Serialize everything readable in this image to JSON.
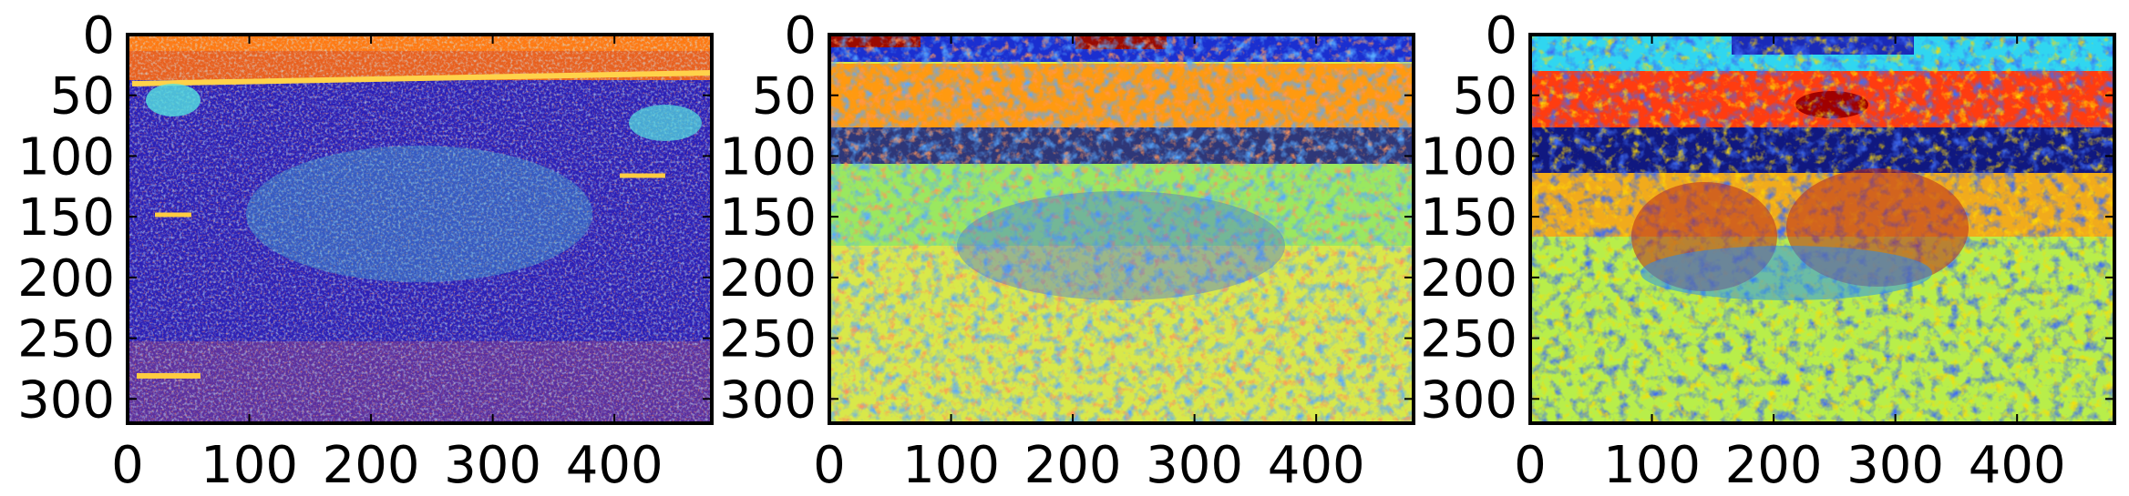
{
  "chart_data": [
    {
      "type": "heatmap",
      "colormap": "jet",
      "image_size": [
        480,
        320
      ],
      "xlim": [
        0,
        480
      ],
      "ylim": [
        320,
        0
      ],
      "xticks": [
        0,
        100,
        200,
        300,
        400
      ],
      "xtick_labels": [
        "0",
        "100",
        "200",
        "300",
        "400"
      ],
      "yticks": [
        0,
        50,
        100,
        150,
        200,
        250,
        300
      ],
      "ytick_labels": [
        "0",
        "50",
        "100",
        "150",
        "200",
        "250",
        "300"
      ]
    },
    {
      "type": "heatmap",
      "colormap": "jet",
      "image_size": [
        480,
        320
      ],
      "xlim": [
        0,
        480
      ],
      "ylim": [
        320,
        0
      ],
      "xticks": [
        0,
        100,
        200,
        300,
        400
      ],
      "xtick_labels": [
        "0",
        "100",
        "200",
        "300",
        "400"
      ],
      "yticks": [
        0,
        50,
        100,
        150,
        200,
        250,
        300
      ],
      "ytick_labels": [
        "0",
        "50",
        "100",
        "150",
        "200",
        "250",
        "300"
      ]
    },
    {
      "type": "heatmap",
      "colormap": "jet",
      "image_size": [
        480,
        320
      ],
      "xlim": [
        0,
        480
      ],
      "ylim": [
        320,
        0
      ],
      "xticks": [
        0,
        100,
        200,
        300,
        400
      ],
      "xtick_labels": [
        "0",
        "100",
        "200",
        "300",
        "400"
      ],
      "yticks": [
        0,
        50,
        100,
        150,
        200,
        250,
        300
      ],
      "ytick_labels": [
        "0",
        "50",
        "100",
        "150",
        "200",
        "250",
        "300"
      ]
    }
  ]
}
